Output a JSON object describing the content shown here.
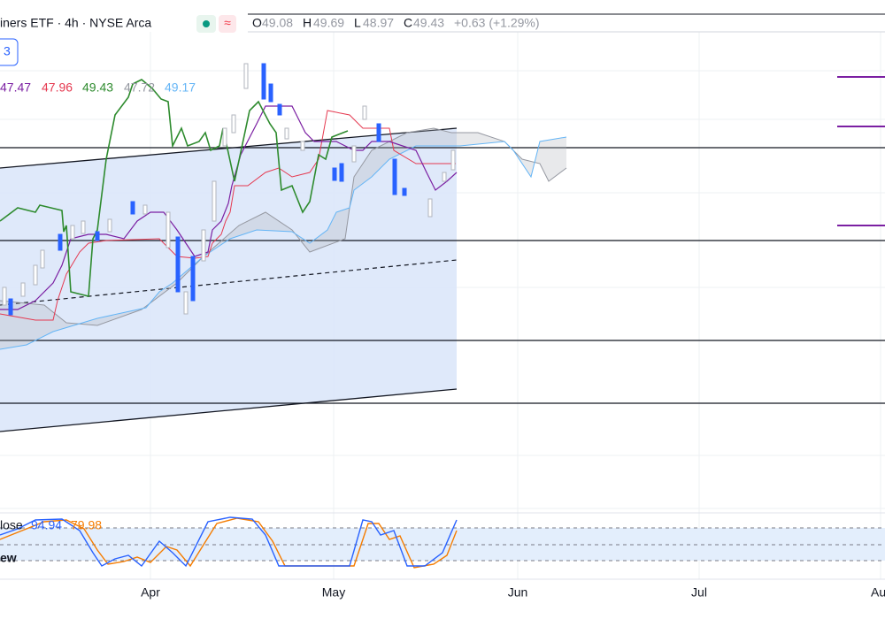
{
  "header": {
    "symbol": "iners ETF · 4h · NYSE Arca",
    "ohlc": [
      {
        "key": "O",
        "value": 49.08
      },
      {
        "key": "H",
        "value": 49.69
      },
      {
        "key": "L",
        "value": 48.97
      },
      {
        "key": "C",
        "value": 49.43
      }
    ],
    "change": "+0.63 (+1.29%)"
  },
  "badge": "3",
  "indicator_values": [
    47.47,
    47.96,
    49.43,
    47.72,
    49.17
  ],
  "oscillator": {
    "label": "lose",
    "values": [
      94.94,
      79.98
    ]
  },
  "logo": "ew",
  "time_axis": [
    "Apr",
    "May",
    "Jun",
    "Jul",
    "Au"
  ]
}
